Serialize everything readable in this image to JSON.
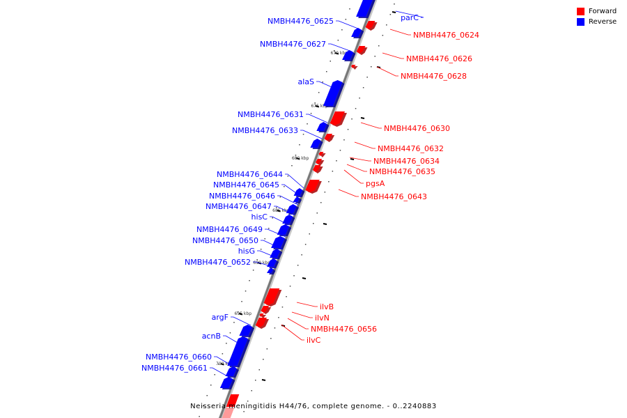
{
  "legend": {
    "forward_label": "Forward",
    "reverse_label": "Reverse",
    "forward_color": "#ff0000",
    "reverse_color": "#0000ff"
  },
  "caption": "Neisseria meningitidis H44/76, complete genome. - 0..2240883",
  "tick_labels": [
    "670 kbp",
    "675 kbp",
    "680 kbp",
    "685 kbp",
    "690 kbp",
    "695 kbp",
    "700 kbp"
  ],
  "reverse_genes": [
    "parC",
    "NMBH4476_0625",
    "NMBH4476_0627",
    "alaS",
    "NMBH4476_0631",
    "NMBH4476_0633",
    "NMBH4476_0644",
    "NMBH4476_0645",
    "NMBH4476_0646",
    "NMBH4476_0647",
    "hisC",
    "NMBH4476_0649",
    "NMBH4476_0650",
    "hisG",
    "NMBH4476_0652",
    "argF",
    "acnB",
    "NMBH4476_0660",
    "NMBH4476_0661"
  ],
  "forward_genes": [
    "NMBH4476_0624",
    "NMBH4476_0626",
    "NMBH4476_0628",
    "NMBH4476_0630",
    "NMBH4476_0632",
    "NMBH4476_0634",
    "NMBH4476_0635",
    "pgsA",
    "NMBH4476_0643",
    "ilvB",
    "ilvN",
    "NMBH4476_0656",
    "ilvC"
  ]
}
